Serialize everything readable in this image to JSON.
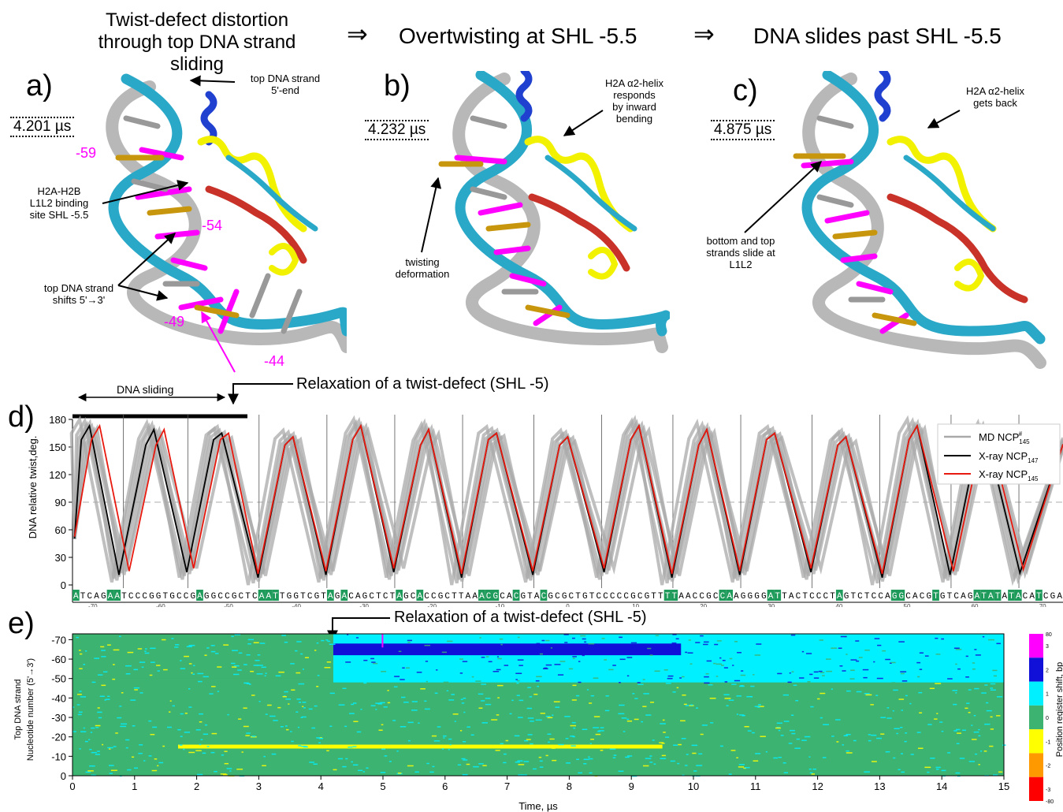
{
  "header": {
    "step1_line1": "Twist-defect distortion",
    "step1_line2": "through top DNA strand sliding",
    "arrow1": "⇒",
    "step2": "Overtwisting at SHL -5.5",
    "arrow2": "⇒",
    "step3": "DNA slides past SHL -5.5"
  },
  "panel_a": {
    "label": "a)",
    "time": "4.201 µs",
    "ann_top_line1": "top DNA strand",
    "ann_top_line2": "5'-end",
    "ann_site_line1": "H2A-H2B",
    "ann_site_line2": "L1L2 binding",
    "ann_site_line3": "site SHL -5.5",
    "ann_shift_line1": "top DNA strand",
    "ann_shift_line2": "shifts 5'→3'",
    "n59": "-59",
    "n54": "-54",
    "n49": "-49",
    "n44": "-44"
  },
  "panel_b": {
    "label": "b)",
    "time": "4.232 µs",
    "ann_helix_line1": "H2A α2-helix",
    "ann_helix_line2": "responds",
    "ann_helix_line3": "by inward",
    "ann_helix_line4": "bending",
    "ann_twist_line1": "twisting",
    "ann_twist_line2": "deformation"
  },
  "panel_c": {
    "label": "c)",
    "time": "4.875 µs",
    "ann_helix_line1": "H2A α2-helix",
    "ann_helix_line2": "gets back",
    "ann_slide_line1": "bottom and top",
    "ann_slide_line2": "strands slide at",
    "ann_slide_line3": "L1L2"
  },
  "panel_d": {
    "label": "d)",
    "sliding_label": "DNA sliding",
    "relax_label": "Relaxation of a twist-defect (SHL -5)",
    "ylabel": "DNA relative twist,deg.",
    "legend": [
      "MD NCP",
      "X-ray NCP",
      "X-ray NCP"
    ],
    "legend_sub": [
      "145",
      "147",
      "145"
    ],
    "legend_sup": "#",
    "sequence": "ATCAGAATCCCGGTGCCGAGGCCGCTCAATTGGTCGTAGACAGCTCTAGCACCGCTTAAACGCACGTACGCGCTGTCCCCCGCGTTTTAACCGCCAAGGGGATTACTCCCTAGTCTCCAGGCACGTGTCAGATATATACATCGA",
    "seq_ticks": [
      "-70",
      "-60",
      "-50",
      "-40",
      "-30",
      "-20",
      "-10",
      "0",
      "10",
      "20",
      "30",
      "40",
      "50",
      "60",
      "70"
    ],
    "colors": {
      "md": "#a9a9a9",
      "xray147": "#000000",
      "xray145": "#e8190e",
      "seq_highlight": "#1e9a5a"
    }
  },
  "panel_e": {
    "label": "e)",
    "relax_label": "Relaxation of a twist-defect (SHL -5)",
    "ylabel_line1": "Top DNA strand",
    "ylabel_line2": "Nucleotide number (5'→3')",
    "xlabel": "Time, µs",
    "cbar_label": "Position register shift, bp",
    "cbar_ticks": [
      "80",
      "3",
      "2",
      "1",
      "0",
      "-1",
      "-2",
      "-3",
      "-80"
    ],
    "colors": {
      "base": "#3cb371",
      "cyan": "#00f0ff",
      "blue": "#1010d8",
      "yellow": "#ffff00",
      "orange": "#ff9900",
      "red": "#ff0000",
      "magenta": "#ff00ff"
    }
  },
  "chart_data": [
    {
      "type": "line",
      "panel": "d",
      "ylabel": "DNA relative twist,deg.",
      "ylim": [
        0,
        180
      ],
      "yticks": [
        0,
        30,
        60,
        90,
        120,
        150,
        180
      ],
      "reference_line": 90,
      "xlim": [
        -73,
        73
      ],
      "xticks": [
        -70,
        -60,
        -50,
        -40,
        -30,
        -20,
        -10,
        0,
        10,
        20,
        30,
        40,
        50,
        60,
        70
      ],
      "x_peaks_black": [
        -70.5,
        -61,
        -51,
        -40.5,
        -30.5,
        -20.5,
        -10.5,
        0,
        10.5,
        20.5,
        30.5,
        41,
        51.5,
        61.5
      ],
      "x_peaks_red": [
        -69,
        -59.5,
        -50,
        -40.5,
        -30.5,
        -20.5,
        -10.5,
        0,
        10.5,
        20.5,
        30.5,
        41,
        51.5,
        62
      ],
      "period": 10.3,
      "series": [
        {
          "name": "MD NCP#145",
          "amplitude_range": [
            0,
            180
          ]
        },
        {
          "name": "X-ray NCP147",
          "min": 8,
          "max": 173
        },
        {
          "name": "X-ray NCP145",
          "min": 12,
          "max": 173
        }
      ],
      "legend_position": "top-right"
    },
    {
      "type": "heatmap",
      "panel": "e",
      "xlabel": "Time, µs",
      "xlim": [
        0,
        15
      ],
      "xticks": [
        0,
        1,
        2,
        3,
        4,
        5,
        6,
        7,
        8,
        9,
        10,
        11,
        12,
        13,
        14,
        15
      ],
      "ylim": [
        0,
        -73
      ],
      "yticks": [
        0,
        -10,
        -20,
        -30,
        -40,
        -50,
        -60,
        -70
      ],
      "color_scale": [
        {
          "value": "80..3",
          "color": "magenta"
        },
        {
          "value": "2",
          "color": "blue"
        },
        {
          "value": "1",
          "color": "cyan"
        },
        {
          "value": "0",
          "color": "green"
        },
        {
          "value": "-1",
          "color": "yellow"
        },
        {
          "value": "-2",
          "color": "orange"
        },
        {
          "value": "-3..-80",
          "color": "red"
        }
      ],
      "regions": [
        {
          "t": [
            0,
            4.2
          ],
          "nuc": [
            -73,
            -50
          ],
          "shift": 0
        },
        {
          "t": [
            4.2,
            15
          ],
          "nuc": [
            -73,
            -48
          ],
          "shift": 1
        },
        {
          "t": [
            4.2,
            9.8
          ],
          "nuc": [
            -68,
            -62
          ],
          "shift": 2
        },
        {
          "t": [
            1.7,
            9.5
          ],
          "nuc": [
            -16,
            -14
          ],
          "shift": -1
        }
      ]
    }
  ]
}
